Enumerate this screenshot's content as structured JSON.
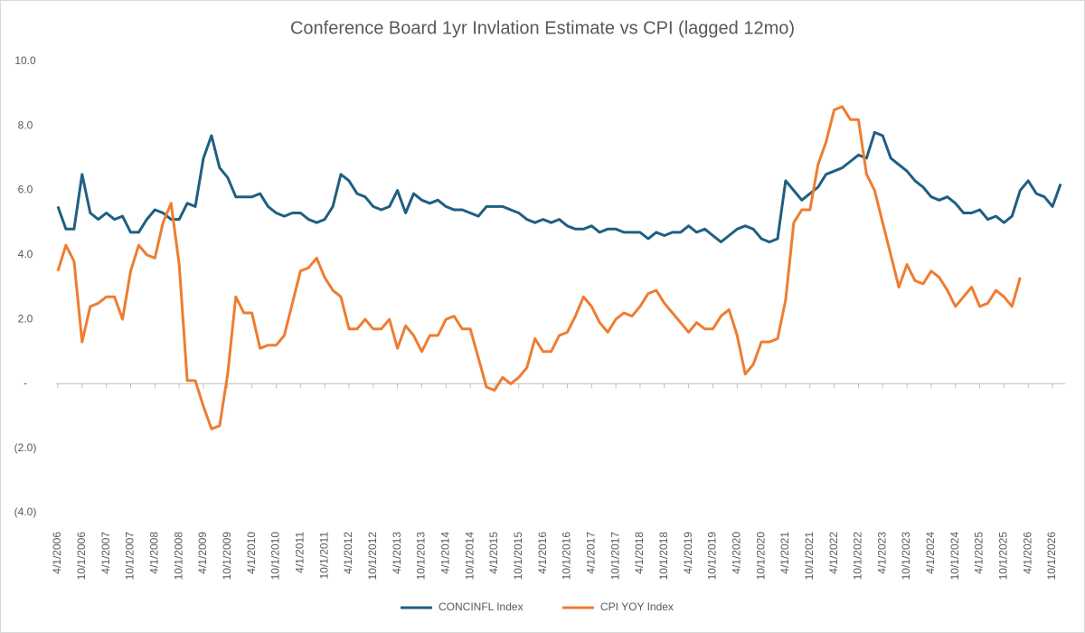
{
  "chart_data": {
    "type": "line",
    "title": "Conference Board 1yr Invlation Estimate vs CPI (lagged 12mo)",
    "categories": [
      "4/1/2006",
      null,
      null,
      "10/1/2006",
      null,
      null,
      "4/1/2007",
      null,
      null,
      "10/1/2007",
      null,
      null,
      "4/1/2008",
      null,
      null,
      "10/1/2008",
      null,
      null,
      "4/1/2009",
      null,
      null,
      "10/1/2009",
      null,
      null,
      "4/1/2010",
      null,
      null,
      "10/1/2010",
      null,
      null,
      "4/1/2011",
      null,
      null,
      "10/1/2011",
      null,
      null,
      "4/1/2012",
      null,
      null,
      "10/1/2012",
      null,
      null,
      "4/1/2013",
      null,
      null,
      "10/1/2013",
      null,
      null,
      "4/1/2014",
      null,
      null,
      "10/1/2014",
      null,
      null,
      "4/1/2015",
      null,
      null,
      "10/1/2015",
      null,
      null,
      "4/1/2016",
      null,
      null,
      "10/1/2016",
      null,
      null,
      "4/1/2017",
      null,
      null,
      "10/1/2017",
      null,
      null,
      "4/1/2018",
      null,
      null,
      "10/1/2018",
      null,
      null,
      "4/1/2019",
      null,
      null,
      "10/1/2019",
      null,
      null,
      "4/1/2020",
      null,
      null,
      "10/1/2020",
      null,
      null,
      "4/1/2021",
      null,
      null,
      "10/1/2021",
      null,
      null,
      "4/1/2022",
      null,
      null,
      "10/1/2022",
      null,
      null,
      "4/1/2023",
      null,
      null,
      "10/1/2023",
      null,
      null,
      "4/1/2024",
      null,
      null,
      "10/1/2024",
      null,
      null,
      "4/1/2025",
      null,
      null,
      "10/1/2025",
      null,
      null,
      "4/1/2026",
      null,
      null,
      "10/1/2026",
      null
    ],
    "series": [
      {
        "name": "CONCINFL Index",
        "color": "#1f5f82",
        "values": [
          5.5,
          4.8,
          4.8,
          6.5,
          5.3,
          5.1,
          5.3,
          5.1,
          5.2,
          4.7,
          4.7,
          5.1,
          5.4,
          5.3,
          5.1,
          5.1,
          5.6,
          5.5,
          7.0,
          7.7,
          6.7,
          6.4,
          5.8,
          5.8,
          5.8,
          5.9,
          5.5,
          5.3,
          5.2,
          5.3,
          5.3,
          5.1,
          5.0,
          5.1,
          5.5,
          6.5,
          6.3,
          5.9,
          5.8,
          5.5,
          5.4,
          5.5,
          6.0,
          5.3,
          5.9,
          5.7,
          5.6,
          5.7,
          5.5,
          5.4,
          5.4,
          5.3,
          5.2,
          5.5,
          5.5,
          5.5,
          5.4,
          5.3,
          5.1,
          5.0,
          5.1,
          5.0,
          5.1,
          4.9,
          4.8,
          4.8,
          4.9,
          4.7,
          4.8,
          4.8,
          4.7,
          4.7,
          4.7,
          4.5,
          4.7,
          4.6,
          4.7,
          4.7,
          4.9,
          4.7,
          4.8,
          4.6,
          4.4,
          4.6,
          4.8,
          4.9,
          4.8,
          4.5,
          4.4,
          4.5,
          6.3,
          6.0,
          5.7,
          5.9,
          6.1,
          6.5,
          6.6,
          6.7,
          6.9,
          7.1,
          7.0,
          7.8,
          7.7,
          7.0,
          6.8,
          6.6,
          6.3,
          6.1,
          5.8,
          5.7,
          5.8,
          5.6,
          5.3,
          5.3,
          5.4,
          5.1,
          5.2,
          5.0,
          5.2,
          6.0,
          6.3,
          5.9,
          5.8,
          5.5,
          6.2
        ]
      },
      {
        "name": "CPI YOY Index",
        "color": "#ee7d31",
        "values": [
          3.5,
          4.3,
          3.8,
          1.3,
          2.4,
          2.5,
          2.7,
          2.7,
          2.0,
          3.5,
          4.3,
          4.0,
          3.9,
          5.0,
          5.6,
          3.7,
          0.1,
          0.1,
          -0.7,
          -1.4,
          -1.3,
          0.3,
          2.7,
          2.2,
          2.2,
          1.1,
          1.2,
          1.2,
          1.5,
          2.5,
          3.5,
          3.6,
          3.9,
          3.3,
          2.9,
          2.7,
          1.7,
          1.7,
          2.0,
          1.7,
          1.7,
          2.0,
          1.1,
          1.8,
          1.5,
          1.0,
          1.5,
          1.5,
          2.0,
          2.1,
          1.7,
          1.7,
          0.8,
          -0.1,
          -0.2,
          0.2,
          0.0,
          0.2,
          0.5,
          1.4,
          1.0,
          1.0,
          1.5,
          1.6,
          2.1,
          2.7,
          2.4,
          1.9,
          1.6,
          2.0,
          2.2,
          2.1,
          2.4,
          2.8,
          2.9,
          2.5,
          2.2,
          1.9,
          1.6,
          1.9,
          1.7,
          1.7,
          2.1,
          2.3,
          1.5,
          0.3,
          0.6,
          1.3,
          1.3,
          1.4,
          2.6,
          5.0,
          5.4,
          5.4,
          6.8,
          7.5,
          8.5,
          8.6,
          8.2,
          8.2,
          6.5,
          6.0,
          5.0,
          4.0,
          3.0,
          3.7,
          3.2,
          3.1,
          3.5,
          3.3,
          2.9,
          2.4,
          2.7,
          3.0,
          2.4,
          2.5,
          2.9,
          2.7,
          2.4,
          3.3,
          null,
          null,
          null,
          null,
          null
        ]
      }
    ],
    "ylim": [
      -4,
      10
    ],
    "yticks": [
      {
        "value": 10,
        "label": "10.0"
      },
      {
        "value": 8,
        "label": "8.0"
      },
      {
        "value": 6,
        "label": "6.0"
      },
      {
        "value": 4,
        "label": "4.0"
      },
      {
        "value": 2,
        "label": "2.0"
      },
      {
        "value": 0,
        "label": "-"
      },
      {
        "value": -2,
        "label": "(2.0)"
      },
      {
        "value": -4,
        "label": "(4.0)"
      }
    ],
    "grid": false,
    "legend": "bottom"
  }
}
